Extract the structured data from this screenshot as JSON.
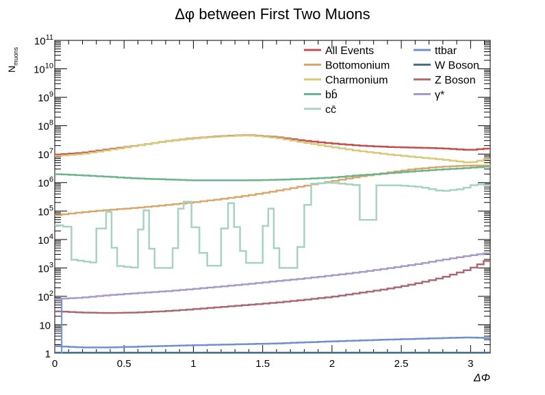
{
  "chart_data": {
    "type": "line",
    "title": "Δφ between First Two Muons",
    "xlabel": "ΔΦ",
    "ylabel": "N",
    "ylabel_sub": "muons",
    "xlim": [
      0,
      3.1416
    ],
    "ylim": [
      1,
      100000000000.0
    ],
    "yscale": "log",
    "grid": false,
    "legend_position": "top-right",
    "x_ticks": [
      {
        "v": 0,
        "label": "0"
      },
      {
        "v": 0.5,
        "label": "0.5"
      },
      {
        "v": 1,
        "label": "1"
      },
      {
        "v": 1.5,
        "label": "1.5"
      },
      {
        "v": 2,
        "label": "2"
      },
      {
        "v": 2.5,
        "label": "2.5"
      },
      {
        "v": 3,
        "label": "3"
      }
    ],
    "y_ticks": [
      {
        "exp": 0,
        "label": "1"
      },
      {
        "exp": 1,
        "label": "10"
      },
      {
        "exp": 2,
        "label": "10",
        "sup": "2"
      },
      {
        "exp": 3,
        "label": "10",
        "sup": "3"
      },
      {
        "exp": 4,
        "label": "10",
        "sup": "4"
      },
      {
        "exp": 5,
        "label": "10",
        "sup": "5"
      },
      {
        "exp": 6,
        "label": "10",
        "sup": "6"
      },
      {
        "exp": 7,
        "label": "10",
        "sup": "7"
      },
      {
        "exp": 8,
        "label": "10",
        "sup": "8"
      },
      {
        "exp": 9,
        "label": "10",
        "sup": "9"
      },
      {
        "exp": 10,
        "label": "10",
        "sup": "10"
      },
      {
        "exp": 11,
        "label": "10",
        "sup": "11"
      }
    ],
    "series": [
      {
        "name": "All Events",
        "color": "#c84b4b",
        "legend_col": 0,
        "legend_row": 0,
        "points": [
          [
            0,
            9500000.0
          ],
          [
            0.2,
            11000000.0
          ],
          [
            0.4,
            15000000.0
          ],
          [
            0.6,
            20000000.0
          ],
          [
            0.8,
            28000000.0
          ],
          [
            1.0,
            36000000.0
          ],
          [
            1.2,
            43000000.0
          ],
          [
            1.4,
            47000000.0
          ],
          [
            1.6,
            40000000.0
          ],
          [
            1.8,
            30000000.0
          ],
          [
            2.0,
            24000000.0
          ],
          [
            2.2,
            20000000.0
          ],
          [
            2.4,
            18000000.0
          ],
          [
            2.6,
            17000000.0
          ],
          [
            2.8,
            16000000.0
          ],
          [
            3.0,
            14000000.0
          ],
          [
            3.1416,
            16000000.0
          ]
        ]
      },
      {
        "name": "Bottomonium",
        "color": "#dba66a",
        "legend_col": 0,
        "legend_row": 1,
        "points": [
          [
            0,
            70000.0
          ],
          [
            0.2,
            90000.0
          ],
          [
            0.4,
            110000.0
          ],
          [
            0.6,
            130000.0
          ],
          [
            0.8,
            160000.0
          ],
          [
            1.0,
            200000.0
          ],
          [
            1.2,
            260000.0
          ],
          [
            1.4,
            350000.0
          ],
          [
            1.6,
            500000.0
          ],
          [
            1.8,
            750000.0
          ],
          [
            2.0,
            1100000.0
          ],
          [
            2.2,
            1600000.0
          ],
          [
            2.4,
            2200000.0
          ],
          [
            2.6,
            3000000.0
          ],
          [
            2.8,
            3600000.0
          ],
          [
            3.0,
            4000000.0
          ],
          [
            3.1416,
            4000000.0
          ]
        ]
      },
      {
        "name": "Charmonium",
        "color": "#d7c87a",
        "legend_col": 0,
        "legend_row": 2,
        "points": [
          [
            0,
            8500000.0
          ],
          [
            0.2,
            10000000.0
          ],
          [
            0.4,
            14000000.0
          ],
          [
            0.6,
            20000000.0
          ],
          [
            0.8,
            28000000.0
          ],
          [
            1.0,
            35000000.0
          ],
          [
            1.2,
            42000000.0
          ],
          [
            1.4,
            46000000.0
          ],
          [
            1.6,
            38000000.0
          ],
          [
            1.8,
            26000000.0
          ],
          [
            2.0,
            18000000.0
          ],
          [
            2.2,
            13000000.0
          ],
          [
            2.4,
            10000000.0
          ],
          [
            2.6,
            8000000.0
          ],
          [
            2.8,
            6500000.0
          ],
          [
            3.0,
            5000000.0
          ],
          [
            3.1416,
            7000000.0
          ]
        ]
      },
      {
        "name": "bb̄",
        "color": "#6ab48c",
        "legend_col": 0,
        "legend_row": 3,
        "points": [
          [
            0,
            2000000.0
          ],
          [
            0.2,
            1800000.0
          ],
          [
            0.4,
            1600000.0
          ],
          [
            0.6,
            1400000.0
          ],
          [
            0.8,
            1300000.0
          ],
          [
            1.0,
            1200000.0
          ],
          [
            1.2,
            1200000.0
          ],
          [
            1.4,
            1200000.0
          ],
          [
            1.6,
            1250000.0
          ],
          [
            1.8,
            1350000.0
          ],
          [
            2.0,
            1500000.0
          ],
          [
            2.2,
            1800000.0
          ],
          [
            2.4,
            2100000.0
          ],
          [
            2.6,
            2500000.0
          ],
          [
            2.8,
            2900000.0
          ],
          [
            3.0,
            3300000.0
          ],
          [
            3.1416,
            3700000.0
          ]
        ]
      },
      {
        "name": "cc̄",
        "color": "#a6d2c2",
        "legend_col": 0,
        "legend_row": 4,
        "points": [
          [
            0,
            2500.0
          ],
          [
            0.06,
            400000.0
          ],
          [
            0.12,
            2000.0
          ],
          [
            0.3,
            1500.0
          ],
          [
            0.37,
            400000.0
          ],
          [
            0.45,
            1200.0
          ],
          [
            0.6,
            1000.0
          ],
          [
            0.64,
            500000.0
          ],
          [
            0.72,
            1000.0
          ],
          [
            0.85,
            1000.0
          ],
          [
            0.93,
            600000.0
          ],
          [
            1.1,
            1200.0
          ],
          [
            1.2,
            1200.0
          ],
          [
            1.25,
            500000.0
          ],
          [
            1.38,
            1500.0
          ],
          [
            1.5,
            1500.0
          ],
          [
            1.54,
            600000.0
          ],
          [
            1.62,
            1000.0
          ],
          [
            1.75,
            1000.0
          ],
          [
            1.85,
            900000.0
          ],
          [
            2.0,
            1000000.0
          ],
          [
            2.2,
            800000.0
          ],
          [
            2.26,
            3000.0
          ],
          [
            2.32,
            800000.0
          ],
          [
            2.5,
            800000.0
          ],
          [
            2.65,
            700000.0
          ],
          [
            2.8,
            500000.0
          ],
          [
            2.95,
            600000.0
          ],
          [
            3.05,
            900000.0
          ],
          [
            3.1416,
            800000.0
          ]
        ]
      },
      {
        "name": "ttbar",
        "color": "#6e8fd0",
        "legend_col": 1,
        "legend_row": 0,
        "points": [
          [
            0,
            1.8
          ],
          [
            0.2,
            1.6
          ],
          [
            0.4,
            1.6
          ],
          [
            0.6,
            1.7
          ],
          [
            0.8,
            1.8
          ],
          [
            1.0,
            1.9
          ],
          [
            1.2,
            2.0
          ],
          [
            1.4,
            2.1
          ],
          [
            1.6,
            2.2
          ],
          [
            1.8,
            2.4
          ],
          [
            2.0,
            2.6
          ],
          [
            2.2,
            2.8
          ],
          [
            2.4,
            3.0
          ],
          [
            2.6,
            3.2
          ],
          [
            2.8,
            3.4
          ],
          [
            3.0,
            3.6
          ],
          [
            3.1416,
            3.4
          ]
        ]
      },
      {
        "name": "W Boson",
        "color": "#4a6d8c",
        "legend_col": 1,
        "legend_row": 1,
        "points": [
          [
            0,
            1.05
          ],
          [
            0.5,
            1.05
          ],
          [
            1.0,
            1.05
          ],
          [
            1.5,
            1.05
          ],
          [
            2.0,
            1.05
          ],
          [
            2.5,
            1.05
          ],
          [
            3.0,
            1.05
          ],
          [
            3.1416,
            1.05
          ]
        ]
      },
      {
        "name": "Z Boson",
        "color": "#a86a70",
        "legend_col": 1,
        "legend_row": 2,
        "points": [
          [
            0,
            30
          ],
          [
            0.2,
            27
          ],
          [
            0.4,
            26
          ],
          [
            0.6,
            27
          ],
          [
            0.8,
            30
          ],
          [
            1.0,
            35
          ],
          [
            1.2,
            42
          ],
          [
            1.4,
            50
          ],
          [
            1.6,
            60
          ],
          [
            1.8,
            75
          ],
          [
            2.0,
            95
          ],
          [
            2.2,
            130
          ],
          [
            2.4,
            180
          ],
          [
            2.6,
            270
          ],
          [
            2.8,
            450
          ],
          [
            3.0,
            900
          ],
          [
            3.1416,
            2000
          ]
        ]
      },
      {
        "name": "γ*",
        "color": "#a999c6",
        "legend_col": 1,
        "legend_row": 3,
        "points": [
          [
            0,
            80
          ],
          [
            0.2,
            90
          ],
          [
            0.4,
            110
          ],
          [
            0.6,
            130
          ],
          [
            0.8,
            150
          ],
          [
            1.0,
            180
          ],
          [
            1.2,
            220
          ],
          [
            1.4,
            270
          ],
          [
            1.6,
            340
          ],
          [
            1.8,
            420
          ],
          [
            2.0,
            540
          ],
          [
            2.2,
            700
          ],
          [
            2.4,
            950
          ],
          [
            2.6,
            1300
          ],
          [
            2.8,
            1900
          ],
          [
            3.0,
            2700
          ],
          [
            3.1416,
            3400
          ]
        ]
      }
    ]
  }
}
